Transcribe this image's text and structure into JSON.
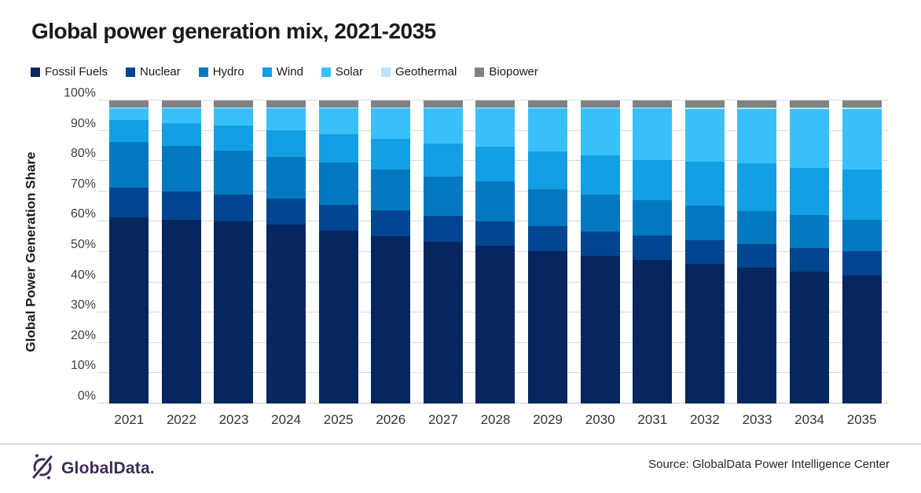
{
  "title": "Global power generation mix, 2021-2035",
  "chart_data": {
    "type": "bar",
    "stacked": true,
    "title": "Global power generation mix, 2021-2035",
    "xlabel": "",
    "ylabel": "Global Power Generation Share",
    "ylim": [
      0,
      100
    ],
    "ytick_step": 10,
    "ytick_suffix": "%",
    "grid": true,
    "legend_position": "top",
    "categories": [
      "2021",
      "2022",
      "2023",
      "2024",
      "2025",
      "2026",
      "2027",
      "2028",
      "2029",
      "2030",
      "2031",
      "2032",
      "2033",
      "2034",
      "2035"
    ],
    "series": [
      {
        "name": "Fossil Fuels",
        "color": "#05265e",
        "values": [
          61.5,
          60.7,
          60.0,
          59.2,
          57.0,
          55.3,
          53.5,
          52.0,
          50.2,
          48.7,
          47.5,
          46.2,
          44.7,
          43.5,
          42.2
        ]
      },
      {
        "name": "Nuclear",
        "color": "#00458f",
        "values": [
          9.7,
          9.2,
          9.0,
          8.4,
          8.6,
          8.5,
          8.5,
          8.2,
          8.3,
          8.0,
          8.0,
          7.8,
          8.0,
          7.8,
          8.1
        ]
      },
      {
        "name": "Hydro",
        "color": "#0378c1",
        "values": [
          15.2,
          15.0,
          14.3,
          13.7,
          14.0,
          13.3,
          13.0,
          13.0,
          12.2,
          12.1,
          11.5,
          11.4,
          10.7,
          11.0,
          10.4
        ]
      },
      {
        "name": "Wind",
        "color": "#129fe3",
        "values": [
          7.2,
          7.6,
          8.3,
          8.8,
          9.3,
          10.2,
          10.7,
          11.6,
          12.6,
          13.2,
          13.4,
          14.4,
          15.8,
          15.4,
          16.4
        ]
      },
      {
        "name": "Solar",
        "color": "#3ac0f9",
        "values": [
          3.8,
          4.9,
          5.8,
          7.3,
          8.5,
          10.1,
          11.6,
          12.5,
          14.0,
          15.3,
          16.9,
          17.4,
          18.0,
          19.5,
          20.1
        ]
      },
      {
        "name": "Geothermal",
        "color": "#b9e4fa",
        "values": [
          0.3,
          0.3,
          0.3,
          0.3,
          0.3,
          0.3,
          0.4,
          0.4,
          0.4,
          0.4,
          0.4,
          0.5,
          0.5,
          0.5,
          0.5
        ]
      },
      {
        "name": "Biopower",
        "color": "#7f8285",
        "values": [
          2.3,
          2.3,
          2.3,
          2.3,
          2.3,
          2.3,
          2.3,
          2.3,
          2.3,
          2.3,
          2.3,
          2.3,
          2.3,
          2.3,
          2.3
        ]
      }
    ]
  },
  "colors": {
    "gridline": "#d9d9d9",
    "baseline": "#c9c9c9",
    "logo_purple": "#3e2b56",
    "text_dark": "#1a1a1a"
  },
  "footer": {
    "logo_icon": "globaldata-circle-slash-icon",
    "logo_text": "GlobalData.",
    "source": "Source: GlobalData Power Intelligence Center"
  }
}
